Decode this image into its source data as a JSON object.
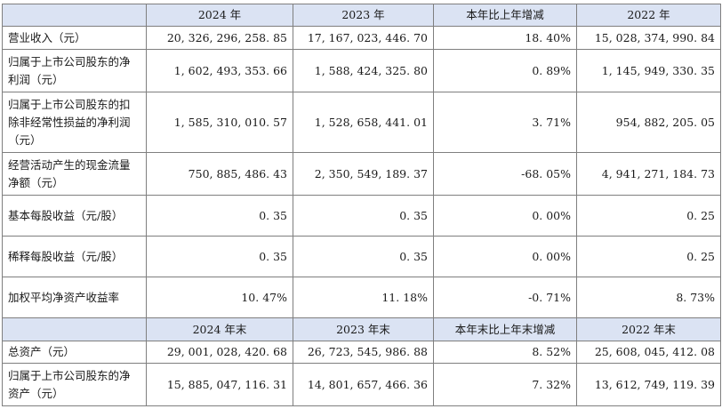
{
  "header_current": {
    "col0": "",
    "col1": "2024 年",
    "col2": "2023 年",
    "col3": "本年比上年增减",
    "col4": "2022 年"
  },
  "rows_current": [
    {
      "label": "营业收入（元）",
      "v2024": "20, 326, 296, 258. 85",
      "v2023": "17, 167, 023, 446. 70",
      "change": "18. 40%",
      "v2022": "15, 028, 374, 990. 84"
    },
    {
      "label": "归属于上市公司股东的净利润（元）",
      "v2024": "1, 602, 493, 353. 66",
      "v2023": "1, 588, 424, 325. 80",
      "change": "0. 89%",
      "v2022": "1, 145, 949, 330. 35"
    },
    {
      "label": "归属于上市公司股东的扣除非经常性损益的净利润（元）",
      "v2024": "1, 585, 310, 010. 57",
      "v2023": "1, 528, 658, 441. 01",
      "change": "3. 71%",
      "v2022": "954, 882, 205. 05"
    },
    {
      "label": "经营活动产生的现金流量净额（元）",
      "v2024": "750, 885, 486. 43",
      "v2023": "2, 350, 549, 189. 37",
      "change": "-68. 05%",
      "v2022": "4, 941, 271, 184. 73"
    },
    {
      "label": "基本每股收益（元/股）",
      "v2024": "0. 35",
      "v2023": "0. 35",
      "change": "0. 00%",
      "v2022": "0. 25"
    },
    {
      "label": "稀释每股收益（元/股）",
      "v2024": "0. 35",
      "v2023": "0. 35",
      "change": "0. 00%",
      "v2022": "0. 25"
    },
    {
      "label": "加权平均净资产收益率",
      "v2024": "10. 47%",
      "v2023": "11. 18%",
      "change": "-0. 71%",
      "v2022": "8. 73%"
    }
  ],
  "header_end": {
    "col0": "",
    "col1": "2024 年末",
    "col2": "2023 年末",
    "col3": "本年末比上年末增减",
    "col4": "2022 年末"
  },
  "rows_end": [
    {
      "label": "总资产（元）",
      "v2024": "29, 001, 028, 420. 68",
      "v2023": "26, 723, 545, 986. 88",
      "change": "8. 52%",
      "v2022": "25, 608, 045, 412. 08"
    },
    {
      "label": "归属于上市公司股东的净资产（元）",
      "v2024": "15, 885, 047, 116. 31",
      "v2023": "14, 801, 657, 466. 36",
      "change": "7. 32%",
      "v2022": "13, 612, 749, 119. 39"
    }
  ]
}
